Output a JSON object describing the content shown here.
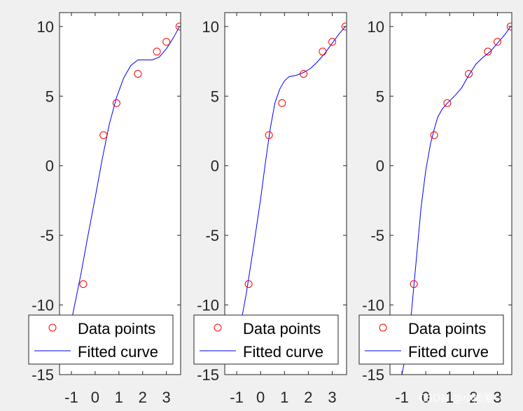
{
  "chart_data": [
    {
      "type": "scatter",
      "title": "",
      "xlabel": "",
      "ylabel": "",
      "xlim": [
        -1.5,
        3.6
      ],
      "ylim": [
        -15,
        11
      ],
      "xticks": [
        "-1",
        "0",
        "1",
        "2",
        "3"
      ],
      "xtick_values": [
        -1,
        0,
        1,
        2,
        3
      ],
      "yticks": [
        "10",
        "5",
        "0",
        "-5",
        "-10",
        "-15"
      ],
      "ytick_values": [
        10,
        5,
        0,
        -5,
        -10,
        -15
      ],
      "points": {
        "x": [
          -0.5,
          0.35,
          0.9,
          1.8,
          2.6,
          3.0,
          3.55
        ],
        "y": [
          -8.5,
          2.2,
          4.5,
          6.6,
          8.2,
          8.9,
          10.0
        ]
      },
      "curve": {
        "x": [
          -1.2,
          -0.9,
          -0.6,
          -0.3,
          0.0,
          0.3,
          0.6,
          0.9,
          1.2,
          1.5,
          1.8,
          2.1,
          2.4,
          2.7,
          3.0,
          3.3,
          3.55
        ],
        "y": [
          -12.8,
          -10.3,
          -7.8,
          -5.0,
          -2.3,
          0.5,
          3.0,
          4.9,
          6.3,
          7.2,
          7.6,
          7.6,
          7.6,
          7.8,
          8.4,
          9.2,
          10.0
        ]
      },
      "legend": {
        "position": "bottom",
        "entries": [
          "Data points",
          "Fitted curve"
        ]
      },
      "grid": false
    },
    {
      "type": "scatter",
      "title": "",
      "xlabel": "",
      "ylabel": "",
      "xlim": [
        -1.5,
        3.6
      ],
      "ylim": [
        -15,
        11
      ],
      "xticks": [
        "-1",
        "0",
        "1",
        "2",
        "3"
      ],
      "xtick_values": [
        -1,
        0,
        1,
        2,
        3
      ],
      "yticks": [
        "10",
        "5",
        "0",
        "-5",
        "-10",
        "-15"
      ],
      "ytick_values": [
        10,
        5,
        0,
        -5,
        -10,
        -15
      ],
      "points": {
        "x": [
          -0.5,
          0.35,
          0.9,
          1.8,
          2.6,
          3.0,
          3.55
        ],
        "y": [
          -8.5,
          2.2,
          4.5,
          6.6,
          8.2,
          8.9,
          10.0
        ]
      },
      "curve": {
        "x": [
          -1.2,
          -0.9,
          -0.6,
          -0.3,
          0.0,
          0.2,
          0.4,
          0.6,
          0.8,
          1.0,
          1.2,
          1.5,
          1.8,
          2.1,
          2.4,
          2.7,
          3.0,
          3.3,
          3.55
        ],
        "y": [
          -14.0,
          -12.0,
          -9.2,
          -5.9,
          -2.4,
          0.2,
          2.6,
          4.5,
          5.5,
          6.1,
          6.4,
          6.5,
          6.7,
          7.0,
          7.5,
          8.1,
          8.8,
          9.5,
          10.0
        ]
      },
      "legend": {
        "position": "bottom",
        "entries": [
          "Data points",
          "Fitted curve"
        ]
      },
      "grid": false
    },
    {
      "type": "scatter",
      "title": "",
      "xlabel": "",
      "ylabel": "",
      "xlim": [
        -1.5,
        3.6
      ],
      "ylim": [
        -15,
        11
      ],
      "xticks": [
        "-1",
        "0",
        "1",
        "2",
        "3"
      ],
      "xtick_values": [
        -1,
        0,
        1,
        2,
        3
      ],
      "yticks": [
        "10",
        "5",
        "0",
        "-5",
        "-10",
        "-15"
      ],
      "ytick_values": [
        10,
        5,
        0,
        -5,
        -10,
        -15
      ],
      "points": {
        "x": [
          -0.5,
          0.35,
          0.9,
          1.8,
          2.6,
          3.0,
          3.55
        ],
        "y": [
          -8.5,
          2.2,
          4.5,
          6.6,
          8.2,
          8.9,
          10.0
        ]
      },
      "curve": {
        "x": [
          -1.0,
          -0.8,
          -0.6,
          -0.4,
          -0.2,
          0.0,
          0.2,
          0.35,
          0.5,
          0.7,
          0.9,
          1.2,
          1.5,
          1.8,
          2.1,
          2.4,
          2.7,
          3.0,
          3.3,
          3.55
        ],
        "y": [
          -15.0,
          -13.2,
          -10.5,
          -6.8,
          -3.0,
          -0.3,
          1.6,
          2.6,
          3.5,
          4.1,
          4.5,
          5.0,
          5.6,
          6.5,
          7.3,
          7.8,
          8.2,
          8.8,
          9.4,
          10.0
        ]
      },
      "legend": {
        "position": "bottom",
        "entries": [
          "Data points",
          "Fitted curve"
        ]
      },
      "grid": false
    }
  ],
  "colors": {
    "points": "#ff0000",
    "curve": "#0000ff",
    "axes": "#262626",
    "background": "#f0f0f0",
    "plot_background": "#ffffff"
  },
  "watermark": "CSDN @小熊爱~"
}
